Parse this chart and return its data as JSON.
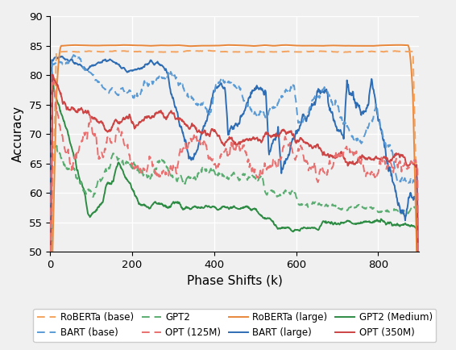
{
  "title": "",
  "xlabel": "Phase Shifts (k)",
  "ylabel": "Accuracy",
  "xlim": [
    0,
    900
  ],
  "ylim": [
    50,
    90
  ],
  "xticks": [
    0,
    200,
    400,
    600,
    800
  ],
  "yticks": [
    50,
    55,
    60,
    65,
    70,
    75,
    80,
    85,
    90
  ],
  "colors": {
    "roberta_base": "#F4A460",
    "roberta_large": "#E8873A",
    "bart_base": "#5B9BD5",
    "bart_large": "#2E6DB4",
    "gpt2": "#5BAD72",
    "gpt2_medium": "#2E8B44",
    "opt_125m": "#E87070",
    "opt_350m": "#CC4444"
  },
  "background": "#F0F0F0",
  "grid_color": "#FFFFFF",
  "legend_fontsize": 8.5,
  "axis_fontsize": 11,
  "tick_fontsize": 9.5,
  "n_points": 900
}
